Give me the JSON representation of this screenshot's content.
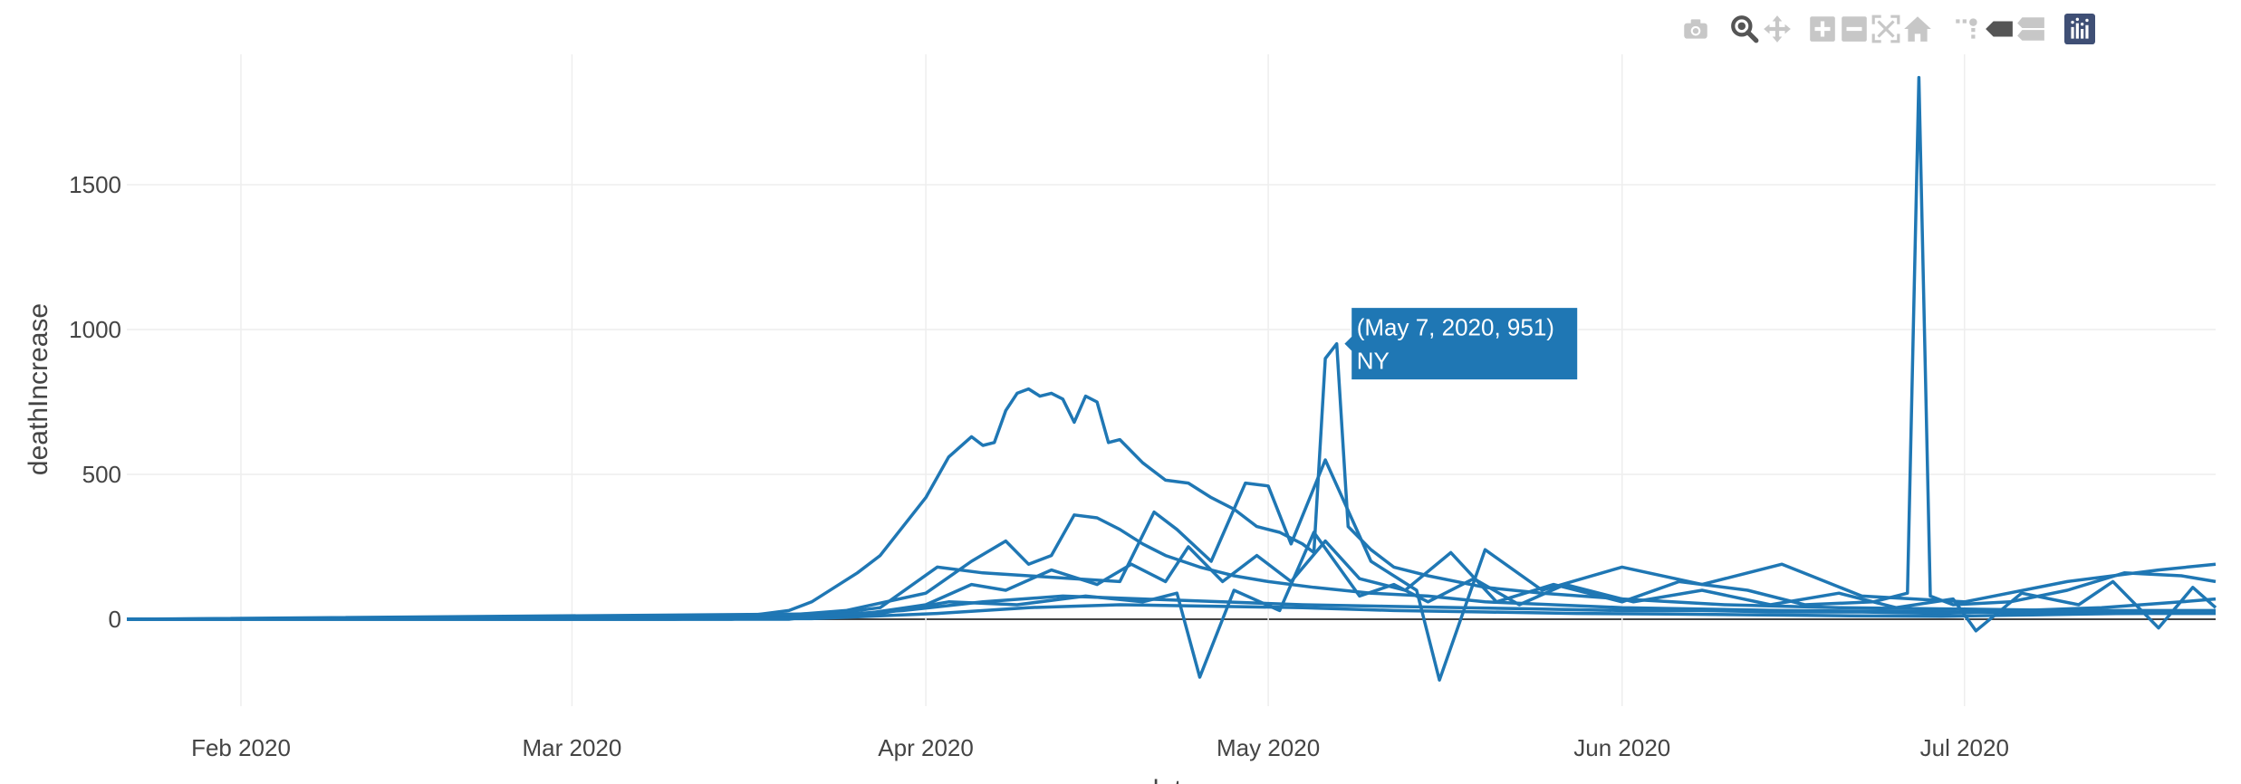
{
  "modebar": {
    "buttons": [
      {
        "name": "camera-icon",
        "color": "#c7c7c7"
      },
      {
        "name": "zoom-icon",
        "color": "#555555",
        "active": true
      },
      {
        "name": "pan-icon",
        "color": "#c7c7c7"
      },
      {
        "name": "zoom-in-icon",
        "color": "#c7c7c7"
      },
      {
        "name": "zoom-out-icon",
        "color": "#c7c7c7"
      },
      {
        "name": "autoscale-icon",
        "color": "#c7c7c7"
      },
      {
        "name": "home-icon",
        "color": "#c7c7c7"
      },
      {
        "name": "spike-lines-icon",
        "color": "#c7c7c7"
      },
      {
        "name": "hover-closest-icon",
        "color": "#555555"
      },
      {
        "name": "hover-compare-icon",
        "color": "#c7c7c7"
      },
      {
        "name": "plotly-logo-icon",
        "color": "#3f4f75"
      }
    ]
  },
  "chart_data": {
    "type": "line",
    "xlabel": "date",
    "ylabel": "deathIncrease",
    "line_color": "#1f77b4",
    "grid": true,
    "xlim": [
      "2020-01-22",
      "2020-07-23"
    ],
    "ylim": [
      -300,
      1950
    ],
    "x_ticks": [
      {
        "date": "2020-02-01",
        "label": "Feb 2020"
      },
      {
        "date": "2020-03-01",
        "label": "Mar 2020"
      },
      {
        "date": "2020-04-01",
        "label": "Apr 2020"
      },
      {
        "date": "2020-05-01",
        "label": "May 2020"
      },
      {
        "date": "2020-06-01",
        "label": "Jun 2020"
      },
      {
        "date": "2020-07-01",
        "label": "Jul 2020"
      }
    ],
    "y_ticks": [
      0,
      500,
      1000,
      1500
    ],
    "series": [
      {
        "x": [
          "2020-01-22",
          "2020-03-10",
          "2020-03-15",
          "2020-03-18",
          "2020-03-20",
          "2020-03-22",
          "2020-03-24",
          "2020-03-26",
          "2020-03-28",
          "2020-03-30",
          "2020-04-01",
          "2020-04-03",
          "2020-04-05",
          "2020-04-06",
          "2020-04-07",
          "2020-04-08",
          "2020-04-09",
          "2020-04-10",
          "2020-04-11",
          "2020-04-12",
          "2020-04-13",
          "2020-04-14",
          "2020-04-15",
          "2020-04-16",
          "2020-04-17",
          "2020-04-18",
          "2020-04-20",
          "2020-04-22",
          "2020-04-24",
          "2020-04-26",
          "2020-04-28",
          "2020-04-30",
          "2020-05-02",
          "2020-05-04",
          "2020-05-05",
          "2020-05-06",
          "2020-05-07",
          "2020-05-08",
          "2020-05-10",
          "2020-05-12",
          "2020-05-15",
          "2020-05-20",
          "2020-05-25",
          "2020-06-01",
          "2020-06-10",
          "2020-06-20",
          "2020-07-01",
          "2020-07-10",
          "2020-07-23"
        ],
        "y": [
          0,
          0,
          5,
          20,
          30,
          60,
          110,
          160,
          220,
          320,
          420,
          560,
          630,
          600,
          610,
          720,
          780,
          795,
          770,
          780,
          760,
          680,
          770,
          750,
          610,
          620,
          540,
          480,
          470,
          420,
          380,
          320,
          300,
          260,
          230,
          900,
          951,
          320,
          240,
          180,
          150,
          110,
          90,
          70,
          50,
          40,
          35,
          30,
          30
        ]
      },
      {
        "x": [
          "2020-01-22",
          "2020-03-15",
          "2020-03-25",
          "2020-04-01",
          "2020-04-05",
          "2020-04-08",
          "2020-04-10",
          "2020-04-12",
          "2020-04-14",
          "2020-04-16",
          "2020-04-18",
          "2020-04-20",
          "2020-04-22",
          "2020-04-25",
          "2020-04-28",
          "2020-05-01",
          "2020-05-05",
          "2020-05-10",
          "2020-05-15",
          "2020-05-20",
          "2020-06-01",
          "2020-06-15",
          "2020-07-01",
          "2020-07-15",
          "2020-07-23"
        ],
        "y": [
          0,
          0,
          30,
          90,
          200,
          270,
          190,
          220,
          360,
          350,
          310,
          260,
          220,
          180,
          150,
          130,
          110,
          90,
          80,
          60,
          40,
          30,
          25,
          20,
          20
        ]
      },
      {
        "x": [
          "2020-01-22",
          "2020-03-20",
          "2020-03-28",
          "2020-04-02",
          "2020-04-06",
          "2020-04-10",
          "2020-04-14",
          "2020-04-18",
          "2020-04-21",
          "2020-04-23",
          "2020-04-26",
          "2020-04-29",
          "2020-05-01",
          "2020-05-03",
          "2020-05-06",
          "2020-05-10",
          "2020-05-14",
          "2020-05-16",
          "2020-05-20",
          "2020-05-25",
          "2020-06-01",
          "2020-06-08",
          "2020-06-15",
          "2020-06-22",
          "2020-07-01",
          "2020-07-10",
          "2020-07-18",
          "2020-07-23"
        ],
        "y": [
          0,
          0,
          40,
          180,
          160,
          150,
          140,
          130,
          370,
          310,
          200,
          470,
          460,
          260,
          550,
          200,
          100,
          -210,
          240,
          100,
          180,
          120,
          190,
          80,
          60,
          130,
          170,
          190
        ]
      },
      {
        "x": [
          "2020-01-22",
          "2020-03-25",
          "2020-04-01",
          "2020-04-05",
          "2020-04-08",
          "2020-04-12",
          "2020-04-16",
          "2020-04-19",
          "2020-04-22",
          "2020-04-24",
          "2020-04-27",
          "2020-04-30",
          "2020-05-03",
          "2020-05-06",
          "2020-05-09",
          "2020-05-13",
          "2020-05-17",
          "2020-05-21",
          "2020-05-26",
          "2020-06-01",
          "2020-06-06",
          "2020-06-12",
          "2020-06-17",
          "2020-06-23",
          "2020-06-26",
          "2020-06-27",
          "2020-06-28",
          "2020-06-30",
          "2020-07-05",
          "2020-07-10",
          "2020-07-15",
          "2020-07-20",
          "2020-07-23"
        ],
        "y": [
          0,
          10,
          50,
          120,
          100,
          170,
          120,
          190,
          130,
          250,
          130,
          220,
          130,
          270,
          140,
          100,
          230,
          60,
          120,
          60,
          130,
          100,
          50,
          60,
          90,
          1870,
          80,
          50,
          60,
          100,
          160,
          150,
          130
        ]
      },
      {
        "x": [
          "2020-01-22",
          "2020-03-28",
          "2020-04-03",
          "2020-04-09",
          "2020-04-15",
          "2020-04-20",
          "2020-04-23",
          "2020-04-25",
          "2020-04-28",
          "2020-05-02",
          "2020-05-05",
          "2020-05-09",
          "2020-05-12",
          "2020-05-15",
          "2020-05-19",
          "2020-05-23",
          "2020-05-27",
          "2020-06-02",
          "2020-06-08",
          "2020-06-14",
          "2020-06-20",
          "2020-06-25",
          "2020-06-30",
          "2020-07-02",
          "2020-07-06",
          "2020-07-11",
          "2020-07-14",
          "2020-07-18",
          "2020-07-21",
          "2020-07-23"
        ],
        "y": [
          0,
          20,
          60,
          50,
          80,
          60,
          90,
          -200,
          100,
          30,
          300,
          80,
          120,
          60,
          140,
          50,
          120,
          60,
          100,
          50,
          90,
          40,
          70,
          -40,
          90,
          50,
          130,
          -30,
          110,
          40
        ]
      },
      {
        "x": [
          "2020-01-22",
          "2020-03-20",
          "2020-03-30",
          "2020-04-06",
          "2020-04-13",
          "2020-04-20",
          "2020-04-27",
          "2020-05-04",
          "2020-05-11",
          "2020-05-18",
          "2020-05-25",
          "2020-06-01",
          "2020-06-08",
          "2020-06-15",
          "2020-06-22",
          "2020-06-29",
          "2020-07-06",
          "2020-07-13",
          "2020-07-20",
          "2020-07-23"
        ],
        "y": [
          0,
          5,
          30,
          60,
          80,
          70,
          60,
          50,
          45,
          40,
          35,
          30,
          30,
          25,
          25,
          20,
          30,
          40,
          60,
          70
        ]
      },
      {
        "x": [
          "2020-01-22",
          "2020-03-22",
          "2020-04-02",
          "2020-04-10",
          "2020-04-18",
          "2020-04-26",
          "2020-05-04",
          "2020-05-12",
          "2020-05-20",
          "2020-05-28",
          "2020-06-05",
          "2020-06-13",
          "2020-06-21",
          "2020-06-29",
          "2020-07-07",
          "2020-07-15",
          "2020-07-23"
        ],
        "y": [
          0,
          2,
          20,
          40,
          50,
          45,
          40,
          30,
          25,
          20,
          18,
          15,
          12,
          10,
          15,
          20,
          25
        ]
      }
    ]
  },
  "tooltip": {
    "line1": "(May 7, 2020, 951)",
    "line2": "NY",
    "x": "2020-05-07",
    "y": 951,
    "bg_color": "#1f77b4"
  }
}
